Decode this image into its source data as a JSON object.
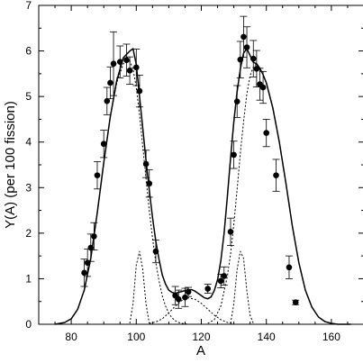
{
  "chart_data": {
    "type": "scatter",
    "xlabel": "A",
    "ylabel": "Y(A) (per 100 fission)",
    "xlim": [
      70,
      170
    ],
    "ylim": [
      0,
      7
    ],
    "x_ticks": [
      80,
      100,
      120,
      140,
      160
    ],
    "y_ticks": [
      0,
      1,
      2,
      3,
      4,
      5,
      6,
      7
    ],
    "grid": false,
    "series": [
      {
        "kind": "points",
        "style": "filled-circle-with-errorbars",
        "points": [
          {
            "x": 84,
            "y": 1.13,
            "err": 0.3
          },
          {
            "x": 85,
            "y": 1.35,
            "err": 0.3
          },
          {
            "x": 86,
            "y": 1.68,
            "err": 0.3
          },
          {
            "x": 87,
            "y": 1.93,
            "err": 0.3
          },
          {
            "x": 88,
            "y": 3.27,
            "err": 0.3
          },
          {
            "x": 90,
            "y": 3.96,
            "err": 0.3
          },
          {
            "x": 91,
            "y": 4.9,
            "err": 0.3
          },
          {
            "x": 92,
            "y": 5.3,
            "err": 0.35
          },
          {
            "x": 93,
            "y": 5.72,
            "err": 0.7
          },
          {
            "x": 95,
            "y": 5.76,
            "err": 0.35
          },
          {
            "x": 97,
            "y": 5.8,
            "err": 0.35
          },
          {
            "x": 98,
            "y": 5.57,
            "err": 0.3
          },
          {
            "x": 100,
            "y": 5.64,
            "err": 0.4
          },
          {
            "x": 101,
            "y": 5.12,
            "err": 0.35
          },
          {
            "x": 103,
            "y": 3.52,
            "err": 0.3
          },
          {
            "x": 104,
            "y": 3.09,
            "err": 0.3
          },
          {
            "x": 106,
            "y": 1.6,
            "err": 0.25
          },
          {
            "x": 112,
            "y": 0.63,
            "err": 0.2
          },
          {
            "x": 113,
            "y": 0.55,
            "err": 0.2
          },
          {
            "x": 115,
            "y": 0.59,
            "err": 0.2
          },
          {
            "x": 116,
            "y": 0.71,
            "err": 0.1
          },
          {
            "x": 122,
            "y": 0.78,
            "err": 0.1
          },
          {
            "x": 126,
            "y": 0.95,
            "err": 0.15
          },
          {
            "x": 127,
            "y": 1.06,
            "err": 0.2
          },
          {
            "x": 129,
            "y": 2.03,
            "err": 0.3
          },
          {
            "x": 130,
            "y": 3.72,
            "err": 0.3
          },
          {
            "x": 131,
            "y": 4.89,
            "err": 0.35
          },
          {
            "x": 132,
            "y": 5.81,
            "err": 0.4
          },
          {
            "x": 133,
            "y": 6.31,
            "err": 0.45
          },
          {
            "x": 134,
            "y": 6.08,
            "err": 0.45
          },
          {
            "x": 136,
            "y": 5.83,
            "err": 0.4
          },
          {
            "x": 137,
            "y": 5.61,
            "err": 0.4
          },
          {
            "x": 138,
            "y": 5.27,
            "err": 0.35
          },
          {
            "x": 139,
            "y": 5.2,
            "err": 0.35
          },
          {
            "x": 140,
            "y": 4.2,
            "err": 0.3
          },
          {
            "x": 143,
            "y": 3.27,
            "err": 0.35
          },
          {
            "x": 147,
            "y": 1.25,
            "err": 0.25
          },
          {
            "x": 149,
            "y": 0.48,
            "err": 0.05
          }
        ]
      },
      {
        "kind": "line",
        "style": "solid",
        "x": [
          75,
          78,
          80,
          82,
          84,
          86,
          88,
          90,
          92,
          94,
          96,
          98,
          99,
          100,
          101,
          102,
          103,
          104,
          105,
          106,
          107,
          108,
          109,
          110,
          111,
          112,
          113,
          114,
          115,
          116,
          117,
          118,
          119,
          120,
          121,
          122,
          123,
          124,
          125,
          126,
          127,
          128,
          129,
          130,
          131,
          132,
          133,
          134,
          135,
          136,
          137,
          138,
          139,
          140,
          142,
          144,
          146,
          148,
          150,
          152,
          154,
          156,
          158,
          160,
          162,
          166
        ],
        "y": [
          0,
          0.04,
          0.12,
          0.33,
          0.75,
          1.45,
          2.45,
          3.55,
          4.55,
          5.35,
          5.85,
          6.0,
          6.05,
          5.7,
          5.0,
          4.3,
          3.6,
          2.95,
          2.35,
          1.82,
          1.42,
          1.08,
          0.88,
          0.75,
          0.7,
          0.68,
          0.7,
          0.72,
          0.74,
          0.76,
          0.76,
          0.73,
          0.68,
          0.63,
          0.58,
          0.56,
          0.6,
          0.74,
          0.98,
          1.4,
          2.0,
          2.8,
          3.65,
          4.45,
          5.1,
          5.6,
          5.95,
          6.05,
          5.9,
          5.75,
          5.72,
          5.62,
          5.48,
          5.3,
          4.75,
          4.0,
          3.1,
          2.15,
          1.35,
          0.75,
          0.38,
          0.16,
          0.06,
          0.02,
          0.0,
          0.0
        ]
      },
      {
        "kind": "line",
        "style": "dotted",
        "x": [
          84,
          86,
          88,
          90,
          92,
          94,
          96,
          98,
          99,
          100,
          101,
          102,
          103,
          104,
          105,
          106,
          107,
          108,
          109,
          110,
          111,
          112,
          113,
          114,
          116
        ],
        "y": [
          0.72,
          1.45,
          2.45,
          3.55,
          4.55,
          5.3,
          5.72,
          5.78,
          5.6,
          5.2,
          4.6,
          3.9,
          3.2,
          2.5,
          1.9,
          1.35,
          0.95,
          0.62,
          0.4,
          0.24,
          0.14,
          0.08,
          0.04,
          0.02,
          0.0
        ]
      },
      {
        "kind": "line",
        "style": "dotted",
        "x": [
          98,
          99,
          100,
          101,
          102,
          103,
          104
        ],
        "y": [
          0.02,
          0.45,
          1.3,
          1.6,
          1.2,
          0.45,
          0.02
        ]
      },
      {
        "kind": "line",
        "style": "dotted",
        "x": [
          104,
          106,
          108,
          110,
          112,
          114,
          116,
          118,
          120,
          122,
          124,
          126,
          128,
          130
        ],
        "y": [
          0.02,
          0.05,
          0.12,
          0.25,
          0.4,
          0.52,
          0.58,
          0.55,
          0.46,
          0.33,
          0.2,
          0.1,
          0.04,
          0.01
        ]
      },
      {
        "kind": "line",
        "style": "dotted",
        "x": [
          129,
          130,
          131,
          132,
          133,
          134,
          135,
          136
        ],
        "y": [
          0.02,
          0.45,
          1.2,
          1.6,
          1.45,
          0.75,
          0.2,
          0.02
        ]
      },
      {
        "kind": "line",
        "style": "dotted",
        "x": [
          122,
          124,
          126,
          128,
          129,
          130,
          131,
          132,
          133,
          134,
          135,
          136,
          137,
          138,
          139,
          140,
          142,
          144,
          146,
          148,
          150,
          152,
          154,
          156
        ],
        "y": [
          0.02,
          0.1,
          0.4,
          1.05,
          1.55,
          2.2,
          2.95,
          3.75,
          4.45,
          5.05,
          5.45,
          5.65,
          5.72,
          5.62,
          5.48,
          5.3,
          4.75,
          4.0,
          3.1,
          2.15,
          1.35,
          0.75,
          0.38,
          0.16
        ]
      }
    ]
  }
}
